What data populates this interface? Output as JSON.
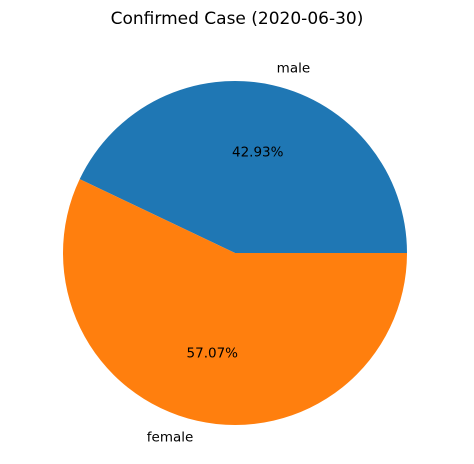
{
  "chart_data": {
    "type": "pie",
    "title": "Confirmed Case (2020-06-30)",
    "slices": [
      {
        "label": "male",
        "value": 42.93,
        "pct_label": "42.93%",
        "color": "#1f77b4"
      },
      {
        "label": "female",
        "value": 57.07,
        "pct_label": "57.07%",
        "color": "#ff7f0e"
      }
    ],
    "start_angle_deg": 0,
    "direction": "counterclockwise",
    "legend": "none"
  }
}
